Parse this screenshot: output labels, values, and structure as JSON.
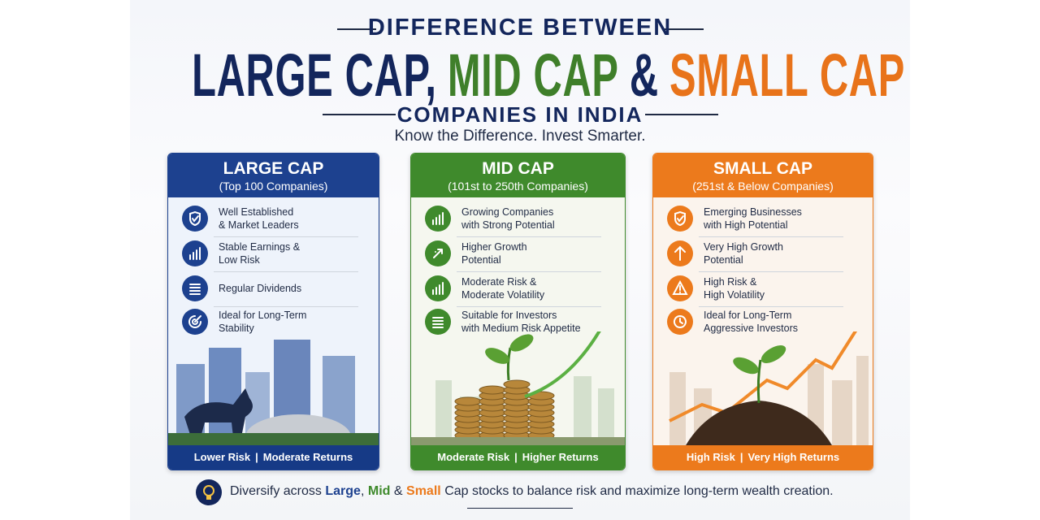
{
  "header": {
    "kicker": "DIFFERENCE BETWEEN",
    "title": [
      {
        "text": "LARGE CAP,",
        "color": "#13265c"
      },
      {
        "text": "MID CAP",
        "color": "#3f7f2a"
      },
      {
        "text": "&",
        "color": "#13265c"
      },
      {
        "text": "SMALL CAP",
        "color": "#e8731a"
      }
    ],
    "subtitle": "COMPANIES IN INDIA",
    "tagline": "Know the Difference. Invest Smarter."
  },
  "cards": [
    {
      "title": "LARGE CAP",
      "subtitle": "(Top 100 Companies)",
      "color": "#1d418f",
      "tint": "#eef3fb",
      "items": [
        [
          "Well Established",
          "& Market Leaders"
        ],
        [
          "Stable Earnings &",
          "Low Risk"
        ],
        [
          "Regular Dividends"
        ],
        [
          "Ideal for Long-Term",
          "Stability"
        ]
      ],
      "footer": [
        "Lower Risk",
        "Moderate Returns"
      ]
    },
    {
      "title": "MID CAP",
      "subtitle": "(101st to 250th Companies)",
      "color": "#3f8a2c",
      "tint": "#f5f7ef",
      "items": [
        [
          "Growing Companies",
          "with Strong Potential"
        ],
        [
          "Higher Growth",
          "Potential"
        ],
        [
          "Moderate Risk &",
          "Moderate Volatility"
        ],
        [
          "Suitable for Investors",
          "with Medium Risk Appetite"
        ]
      ],
      "footer": [
        "Moderate Risk",
        "Higher Returns"
      ]
    },
    {
      "title": "SMALL CAP",
      "subtitle": "(251st & Below Companies)",
      "color": "#ec7a1c",
      "tint": "#fbf4ed",
      "items": [
        [
          "Emerging Businesses",
          "with High Potential"
        ],
        [
          "Very High Growth",
          "Potential"
        ],
        [
          "High Risk &",
          "High Volatility"
        ],
        [
          "Ideal for Long-Term",
          "Aggressive Investors"
        ]
      ],
      "footer": [
        "High Risk",
        "Very High Returns"
      ]
    }
  ],
  "footer_separator": "|",
  "note": [
    {
      "text": "Diversify across",
      "color": "#1f2a44"
    },
    {
      "text": "Large",
      "color": "#1d418f"
    },
    {
      "text": ",",
      "color": "#1f2a44"
    },
    {
      "text": "Mid",
      "color": "#3f8a2c"
    },
    {
      "text": "&",
      "color": "#1f2a44"
    },
    {
      "text": "Small",
      "color": "#ec7a1c"
    },
    {
      "text": "Cap stocks to balance risk and maximize long-term wealth creation.",
      "color": "#1f2a44"
    }
  ]
}
